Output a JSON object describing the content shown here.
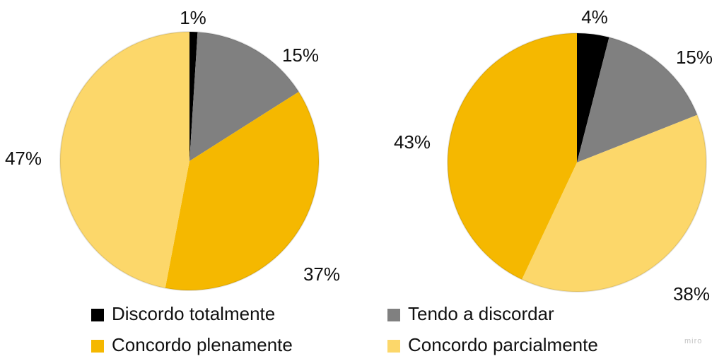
{
  "chart_data": [
    {
      "type": "pie",
      "categories": [
        "Discordo totalmente",
        "Tendo a discordar",
        "Concordo plenamente",
        "Concordo parcialmente"
      ],
      "values": [
        1,
        15,
        37,
        47
      ],
      "labels": [
        "1%",
        "15%",
        "37%",
        "47%"
      ]
    },
    {
      "type": "pie",
      "categories": [
        "Discordo totalmente",
        "Tendo a discordar",
        "Concordo parcialmente",
        "Concordo plenamente"
      ],
      "values": [
        4,
        15,
        38,
        43
      ],
      "labels": [
        "4%",
        "15%",
        "38%",
        "43%"
      ]
    }
  ],
  "legend": [
    {
      "label": "Discordo totalmente",
      "color": "#000000"
    },
    {
      "label": "Tendo a discordar",
      "color": "#808080"
    },
    {
      "label": "Concordo plenamente",
      "color": "#F5B800"
    },
    {
      "label": "Concordo parcialmente",
      "color": "#FCD76A"
    }
  ],
  "watermark": "miro"
}
